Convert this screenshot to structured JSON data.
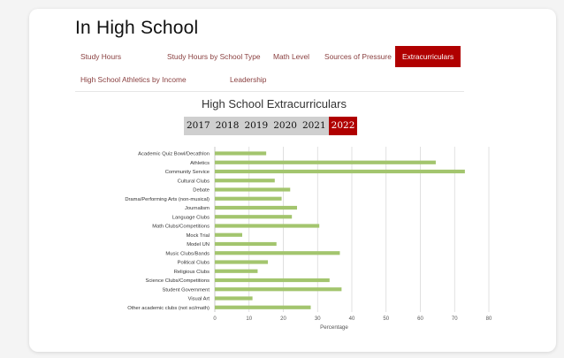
{
  "page": {
    "title": "In High School"
  },
  "tabs": [
    {
      "label": "Study Hours",
      "active": false
    },
    {
      "label": "Study Hours by School Type",
      "active": false
    },
    {
      "label": "Math Level",
      "active": false
    },
    {
      "label": "Sources of Pressure",
      "active": false
    },
    {
      "label": "Extracurriculars",
      "active": true
    },
    {
      "label": "High School Athletics by Income",
      "active": false
    },
    {
      "label": "Leadership",
      "active": false
    }
  ],
  "years": [
    {
      "label": "2017",
      "active": false
    },
    {
      "label": "2018",
      "active": false
    },
    {
      "label": "2019",
      "active": false
    },
    {
      "label": "2020",
      "active": false
    },
    {
      "label": "2021",
      "active": false
    },
    {
      "label": "2022",
      "active": true
    }
  ],
  "colors": {
    "accent": "#b00000",
    "bar": "#a3c56e",
    "grid": "#d9d9d9",
    "year_bg": "#cfcfcf"
  },
  "chart_data": {
    "type": "bar",
    "orientation": "horizontal",
    "title": "High School Extracurriculars",
    "xlabel": "Percentage",
    "ylabel": "",
    "xlim": [
      0,
      80
    ],
    "xticks": [
      0,
      10,
      20,
      30,
      40,
      50,
      60,
      70,
      80
    ],
    "grid": true,
    "categories": [
      "Academic Quiz Bowl/Decathlon",
      "Athletics",
      "Community Service",
      "Cultural Clubs",
      "Debate",
      "Drama/Performing Arts (non-musical)",
      "Journalism",
      "Language Clubs",
      "Math Clubs/Competitions",
      "Mock Trial",
      "Model UN",
      "Music Clubs/Bands",
      "Political Clubs",
      "Religious Clubs",
      "Science Clubs/Competitions",
      "Student Government",
      "Visual Art",
      "Other academic clubs (not sci/math)"
    ],
    "values": [
      15,
      64.5,
      73,
      17.5,
      22,
      19.5,
      24,
      22.5,
      30.5,
      8,
      18,
      36.5,
      15.5,
      12.5,
      33.5,
      37,
      11,
      28
    ]
  }
}
